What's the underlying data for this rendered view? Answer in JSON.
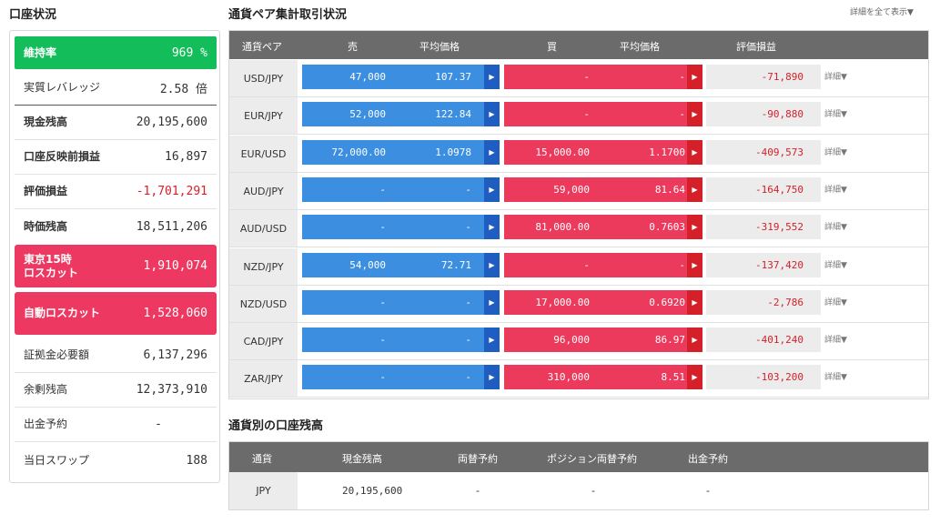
{
  "account": {
    "title": "口座状況",
    "rows": [
      {
        "label": "維持率",
        "value": "969 %"
      },
      {
        "label": "実質レバレッジ",
        "value": "2.58 倍"
      },
      {
        "label": "現金残高",
        "value": "20,195,600"
      },
      {
        "label": "口座反映前損益",
        "value": "16,897"
      },
      {
        "label": "評価損益",
        "value": "-1,701,291"
      },
      {
        "label": "時価残高",
        "value": "18,511,206"
      },
      {
        "label": "東京15時\nロスカット",
        "value": "1,910,074"
      },
      {
        "label": "自動ロスカット",
        "value": "1,528,060"
      },
      {
        "label": "証拠金必要額",
        "value": "6,137,296"
      },
      {
        "label": "余剰残高",
        "value": "12,373,910"
      },
      {
        "label": "出金予約",
        "value": "-"
      },
      {
        "label": "当日スワップ",
        "value": "188"
      }
    ]
  },
  "positions": {
    "title": "通貨ペア集計取引状況",
    "show_all": "詳細を全て表示▼",
    "headers": {
      "pair": "通貨ペア",
      "sell": "売",
      "sell_avg": "平均価格",
      "buy": "買",
      "buy_avg": "平均価格",
      "pl": "評価損益"
    },
    "detail_label": "詳細▼",
    "rows": [
      {
        "pair": "USD/JPY",
        "sell_qty": "47,000",
        "sell_avg": "107.37",
        "buy_qty": "-",
        "buy_avg": "-",
        "pl": "-71,890"
      },
      {
        "pair": "EUR/JPY",
        "sell_qty": "52,000",
        "sell_avg": "122.84",
        "buy_qty": "-",
        "buy_avg": "-",
        "pl": "-90,880"
      },
      {
        "pair": "EUR/USD",
        "sell_qty": "72,000.00",
        "sell_avg": "1.0978",
        "buy_qty": "15,000.00",
        "buy_avg": "1.1700",
        "pl": "-409,573"
      },
      {
        "pair": "AUD/JPY",
        "sell_qty": "-",
        "sell_avg": "-",
        "buy_qty": "59,000",
        "buy_avg": "81.64",
        "pl": "-164,750"
      },
      {
        "pair": "AUD/USD",
        "sell_qty": "-",
        "sell_avg": "-",
        "buy_qty": "81,000.00",
        "buy_avg": "0.7603",
        "pl": "-319,552"
      },
      {
        "pair": "NZD/JPY",
        "sell_qty": "54,000",
        "sell_avg": "72.71",
        "buy_qty": "-",
        "buy_avg": "-",
        "pl": "-137,420"
      },
      {
        "pair": "NZD/USD",
        "sell_qty": "-",
        "sell_avg": "-",
        "buy_qty": "17,000.00",
        "buy_avg": "0.6920",
        "pl": "-2,786"
      },
      {
        "pair": "CAD/JPY",
        "sell_qty": "-",
        "sell_avg": "-",
        "buy_qty": "96,000",
        "buy_avg": "86.97",
        "pl": "-401,240"
      },
      {
        "pair": "ZAR/JPY",
        "sell_qty": "-",
        "sell_avg": "-",
        "buy_qty": "310,000",
        "buy_avg": "8.51",
        "pl": "-103,200"
      }
    ]
  },
  "balances": {
    "title": "通貨別の口座残高",
    "headers": {
      "currency": "通貨",
      "cash": "現金残高",
      "exchange": "両替予約",
      "pos_exchange": "ポジション両替予約",
      "withdraw": "出金予約"
    },
    "rows": [
      {
        "currency": "JPY",
        "cash": "20,195,600",
        "exchange": "-",
        "pos_exchange": "-",
        "withdraw": "-"
      }
    ]
  },
  "colors": {
    "green": "#13bd59",
    "pink": "#ed3961",
    "sell_blue": "#3b8ee0",
    "buy_red": "#ec3a5c",
    "header_gray": "#6b6b6b",
    "negative": "#d5202a"
  }
}
